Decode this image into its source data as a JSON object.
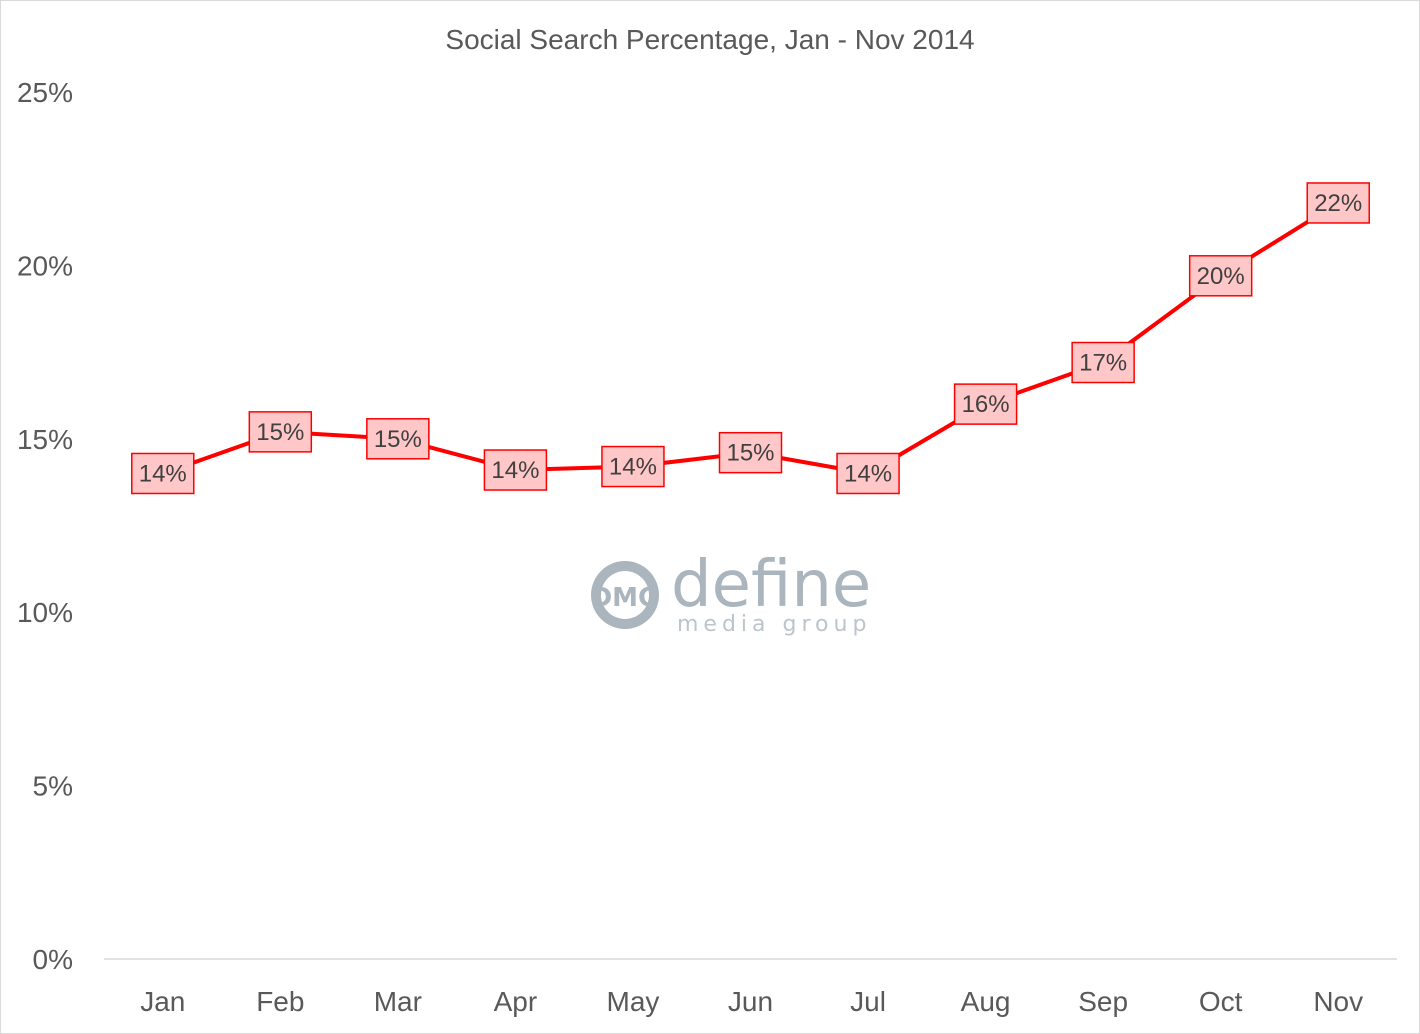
{
  "chart_data": {
    "type": "line",
    "title": "Social Search Percentage, Jan - Nov 2014",
    "categories": [
      "Jan",
      "Feb",
      "Mar",
      "Apr",
      "May",
      "Jun",
      "Jul",
      "Aug",
      "Sep",
      "Oct",
      "Nov"
    ],
    "series": [
      {
        "values": [
          14.0,
          15.2,
          15.0,
          14.1,
          14.2,
          14.6,
          14.0,
          16.0,
          17.2,
          19.7,
          21.8
        ],
        "labels": [
          "14%",
          "15%",
          "15%",
          "14%",
          "14%",
          "15%",
          "14%",
          "16%",
          "17%",
          "20%",
          "22%"
        ],
        "color": "#ff0000",
        "label_fill": "#ffc7c7"
      }
    ],
    "ylim": [
      0,
      25
    ],
    "yticks": [
      0,
      5,
      10,
      15,
      20,
      25
    ],
    "ytick_labels": [
      "0%",
      "5%",
      "10%",
      "15%",
      "20%",
      "25%"
    ],
    "grid": false,
    "legend": "none",
    "xlabel": "",
    "ylabel": ""
  },
  "watermark": {
    "logo_letters": "DMG",
    "brand": "define",
    "tagline": "media group",
    "color": "#a3adb8"
  }
}
